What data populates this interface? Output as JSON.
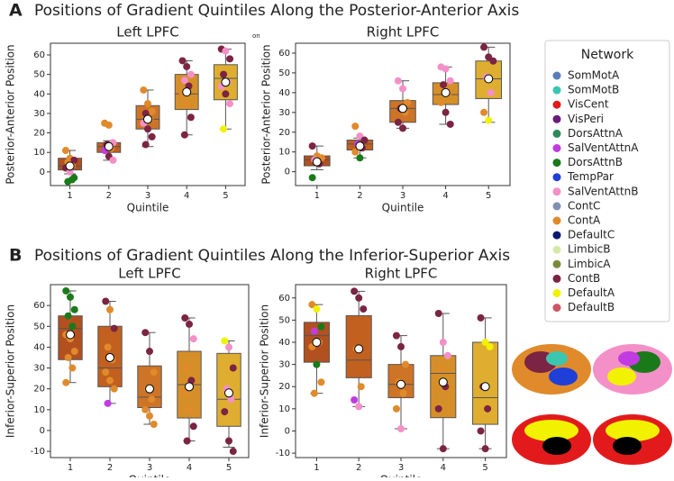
{
  "figure": {
    "panel_a": {
      "letter": "A",
      "title": "Positions of Gradient Quintiles Along the Posterior-Anterior Axis"
    },
    "panel_b": {
      "letter": "B",
      "title": "Positions of Gradient Quintiles Along the Inferior-Superior Axis"
    },
    "stray_text": "on",
    "legend": {
      "title": "Network",
      "entries": [
        {
          "name": "SomMotA",
          "color": "#5b7fb8"
        },
        {
          "name": "SomMotB",
          "color": "#3cc6b0"
        },
        {
          "name": "VisCent",
          "color": "#e31a1c"
        },
        {
          "name": "VisPeri",
          "color": "#6a1b7a"
        },
        {
          "name": "DorsAttnA",
          "color": "#2e8b57"
        },
        {
          "name": "SalVentAttnA",
          "color": "#c13ce0"
        },
        {
          "name": "DorsAttnB",
          "color": "#1a7a1a"
        },
        {
          "name": "TempPar",
          "color": "#1f3fd8"
        },
        {
          "name": "SalVentAttnB",
          "color": "#f490c8"
        },
        {
          "name": "ContC",
          "color": "#7f8fb0"
        },
        {
          "name": "ContA",
          "color": "#e08a2c"
        },
        {
          "name": "DefaultC",
          "color": "#0b1a6e"
        },
        {
          "name": "LimbicB",
          "color": "#d6e8a8"
        },
        {
          "name": "LimbicA",
          "color": "#7a8a3a"
        },
        {
          "name": "ContB",
          "color": "#7b2443"
        },
        {
          "name": "DefaultA",
          "color": "#f2f200"
        },
        {
          "name": "DefaultB",
          "color": "#cc5566"
        }
      ]
    }
  },
  "chart_data": [
    {
      "type": "box",
      "title": "Left LPFC",
      "xlabel": "Quintile",
      "ylabel": "Posterior-Anterior Position",
      "categories": [
        "1",
        "2",
        "3",
        "4",
        "5"
      ],
      "ylim": [
        -7,
        66
      ],
      "yticks": [
        0,
        10,
        20,
        30,
        40,
        50,
        60
      ],
      "boxes": [
        {
          "whislo": -1,
          "q1": 1,
          "med": 3,
          "q3": 7,
          "whishi": 11,
          "mean": 3,
          "color": "#b3501f"
        },
        {
          "whislo": 6,
          "q1": 10,
          "med": 13,
          "q3": 15,
          "whishi": 16,
          "mean": 13,
          "color": "#c2601f"
        },
        {
          "whislo": 13,
          "q1": 22,
          "med": 27,
          "q3": 34,
          "whishi": 42,
          "mean": 27,
          "color": "#cd7426"
        },
        {
          "whislo": 19,
          "q1": 32,
          "med": 40,
          "q3": 50,
          "whishi": 57,
          "mean": 41,
          "color": "#d68f28"
        },
        {
          "whislo": 22,
          "q1": 37,
          "med": 48,
          "q3": 55,
          "whishi": 63,
          "mean": 46,
          "color": "#dfae30"
        }
      ],
      "points": [
        {
          "values": [
            11,
            7,
            6,
            5,
            3,
            2,
            0,
            -3,
            -5,
            -4
          ],
          "colors": [
            "#e08a2c",
            "#e08a2c",
            "#7b2443",
            "#e08a2c",
            "#e08a2c",
            "#7b2443",
            "#f490c8",
            "#1a7a1a",
            "#1a7a1a",
            "#1a7a1a"
          ]
        },
        {
          "values": [
            25,
            24,
            15,
            14,
            12,
            11,
            8,
            6
          ],
          "colors": [
            "#e08a2c",
            "#e08a2c",
            "#f490c8",
            "#7b2443",
            "#e08a2c",
            "#c13ce0",
            "#7b2443",
            "#f490c8"
          ]
        },
        {
          "values": [
            42,
            35,
            31,
            30,
            27,
            25,
            22,
            18,
            14
          ],
          "colors": [
            "#e08a2c",
            "#e08a2c",
            "#e08a2c",
            "#7b2443",
            "#e08a2c",
            "#f490c8",
            "#7b2443",
            "#7b2443",
            "#7b2443"
          ]
        },
        {
          "values": [
            57,
            54,
            50,
            47,
            44,
            40,
            35,
            28,
            19
          ],
          "colors": [
            "#7b2443",
            "#7b2443",
            "#f490c8",
            "#f490c8",
            "#7b2443",
            "#e08a2c",
            "#e08a2c",
            "#7b2443",
            "#7b2443"
          ]
        },
        {
          "values": [
            63,
            62,
            58,
            50,
            46,
            44,
            40,
            35,
            22
          ],
          "colors": [
            "#7b2443",
            "#f490c8",
            "#7b2443",
            "#7b2443",
            "#f490c8",
            "#f490c8",
            "#7b2443",
            "#f490c8",
            "#f2f200"
          ]
        }
      ]
    },
    {
      "type": "box",
      "title": "Right LPFC",
      "xlabel": "Quintile",
      "ylabel": "Posterior-Anterior Position",
      "categories": [
        "1",
        "2",
        "3",
        "4",
        "5"
      ],
      "ylim": [
        -7,
        65
      ],
      "yticks": [
        0,
        10,
        20,
        30,
        40,
        50,
        60
      ],
      "boxes": [
        {
          "whislo": 1,
          "q1": 3,
          "med": 6,
          "q3": 8,
          "whishi": 13,
          "mean": 5,
          "color": "#b3501f"
        },
        {
          "whislo": 7,
          "q1": 11,
          "med": 14,
          "q3": 16,
          "whishi": 17,
          "mean": 13,
          "color": "#c2601f"
        },
        {
          "whislo": 22,
          "q1": 25,
          "med": 32,
          "q3": 36,
          "whishi": 46,
          "mean": 32,
          "color": "#cd7426"
        },
        {
          "whislo": 24,
          "q1": 34,
          "med": 39,
          "q3": 45,
          "whishi": 53,
          "mean": 40,
          "color": "#d68f28"
        },
        {
          "whislo": 25,
          "q1": 37,
          "med": 47,
          "q3": 56,
          "whishi": 63,
          "mean": 47,
          "color": "#dfae30"
        }
      ],
      "points": [
        {
          "values": [
            13,
            8,
            7,
            6,
            4,
            -3
          ],
          "colors": [
            "#7b2443",
            "#e08a2c",
            "#e08a2c",
            "#f490c8",
            "#7b2443",
            "#1a7a1a"
          ]
        },
        {
          "values": [
            23,
            18,
            16,
            14,
            12,
            10,
            7
          ],
          "colors": [
            "#e08a2c",
            "#f490c8",
            "#7b2443",
            "#c13ce0",
            "#7b2443",
            "#e08a2c",
            "#1a7a1a"
          ]
        },
        {
          "values": [
            46,
            42,
            35,
            32,
            30,
            25,
            22
          ],
          "colors": [
            "#f490c8",
            "#f490c8",
            "#e08a2c",
            "#7b2443",
            "#e08a2c",
            "#7b2443",
            "#7b2443"
          ]
        },
        {
          "values": [
            53,
            52,
            46,
            44,
            40,
            35,
            30,
            24
          ],
          "colors": [
            "#f490c8",
            "#f490c8",
            "#f490c8",
            "#7b2443",
            "#e08a2c",
            "#e08a2c",
            "#7b2443",
            "#7b2443"
          ]
        },
        {
          "values": [
            63,
            58,
            56,
            48,
            40,
            30,
            26
          ],
          "colors": [
            "#7b2443",
            "#7b2443",
            "#7b2443",
            "#f490c8",
            "#f490c8",
            "#e08a2c",
            "#f2f200"
          ]
        }
      ]
    },
    {
      "type": "box",
      "title": "Left LPFC",
      "xlabel": "Quintile",
      "ylabel": "Inferior-Superior Position",
      "categories": [
        "1",
        "2",
        "3",
        "4",
        "5"
      ],
      "ylim": [
        -13,
        70
      ],
      "yticks": [
        -10,
        0,
        10,
        20,
        30,
        40,
        50,
        60
      ],
      "boxes": [
        {
          "whislo": 23,
          "q1": 34,
          "med": 49,
          "q3": 55,
          "whishi": 67,
          "mean": 46,
          "color": "#b3501f"
        },
        {
          "whislo": 13,
          "q1": 21,
          "med": 30,
          "q3": 50,
          "whishi": 62,
          "mean": 35,
          "color": "#c2601f"
        },
        {
          "whislo": 3,
          "q1": 11,
          "med": 16,
          "q3": 31,
          "whishi": 47,
          "mean": 20,
          "color": "#cd7426"
        },
        {
          "whislo": -5,
          "q1": 6,
          "med": 22,
          "q3": 38,
          "whishi": 54,
          "mean": 21,
          "color": "#d68f28"
        },
        {
          "whislo": -8,
          "q1": 2,
          "med": 15,
          "q3": 37,
          "whishi": 43,
          "mean": 18,
          "color": "#dfae30"
        }
      ],
      "points": [
        {
          "values": [
            67,
            64,
            58,
            55,
            50,
            46,
            44,
            38,
            35,
            30,
            23
          ],
          "colors": [
            "#1a7a1a",
            "#1a7a1a",
            "#1a7a1a",
            "#1a7a1a",
            "#1a7a1a",
            "#e08a2c",
            "#e08a2c",
            "#e08a2c",
            "#e08a2c",
            "#e08a2c",
            "#e08a2c"
          ]
        },
        {
          "values": [
            62,
            58,
            49,
            40,
            34,
            28,
            24,
            20,
            13
          ],
          "colors": [
            "#7b2443",
            "#e08a2c",
            "#7b2443",
            "#e08a2c",
            "#e08a2c",
            "#e08a2c",
            "#e08a2c",
            "#e08a2c",
            "#c13ce0"
          ]
        },
        {
          "values": [
            47,
            38,
            28,
            20,
            15,
            10,
            7,
            3
          ],
          "colors": [
            "#7b2443",
            "#7b2443",
            "#e08a2c",
            "#e08a2c",
            "#e08a2c",
            "#e08a2c",
            "#e08a2c",
            "#e08a2c"
          ]
        },
        {
          "values": [
            54,
            51,
            44,
            30,
            24,
            18,
            10,
            2,
            -5
          ],
          "colors": [
            "#7b2443",
            "#7b2443",
            "#f490c8",
            "#e08a2c",
            "#7b2443",
            "#e08a2c",
            "#e08a2c",
            "#7b2443",
            "#7b2443"
          ]
        },
        {
          "values": [
            43,
            40,
            30,
            20,
            15,
            9,
            -5,
            -10
          ],
          "colors": [
            "#f2f200",
            "#f490c8",
            "#7b2443",
            "#f490c8",
            "#f490c8",
            "#7b2443",
            "#7b2443",
            "#7b2443"
          ]
        }
      ]
    },
    {
      "type": "box",
      "title": "Right LPFC",
      "xlabel": "Quintile",
      "ylabel": "Inferior-Superior Position",
      "categories": [
        "1",
        "2",
        "3",
        "4",
        "5"
      ],
      "ylim": [
        -12,
        66
      ],
      "yticks": [
        -10,
        0,
        10,
        20,
        30,
        40,
        50,
        60
      ],
      "boxes": [
        {
          "whislo": 17,
          "q1": 31,
          "med": 43,
          "q3": 49,
          "whishi": 57,
          "mean": 40,
          "color": "#b3501f"
        },
        {
          "whislo": 11,
          "q1": 24,
          "med": 32,
          "q3": 52,
          "whishi": 63,
          "mean": 37,
          "color": "#c2601f"
        },
        {
          "whislo": 1,
          "q1": 15,
          "med": 21,
          "q3": 30,
          "whishi": 43,
          "mean": 21,
          "color": "#cd7426"
        },
        {
          "whislo": -8,
          "q1": 6,
          "med": 26,
          "q3": 34,
          "whishi": 53,
          "mean": 22,
          "color": "#d68f28"
        },
        {
          "whislo": -8,
          "q1": 3,
          "med": 15,
          "q3": 40,
          "whishi": 51,
          "mean": 20,
          "color": "#dfae30"
        }
      ],
      "points": [
        {
          "values": [
            57,
            55,
            47,
            45,
            40,
            38,
            30,
            22,
            17
          ],
          "colors": [
            "#e08a2c",
            "#f2f200",
            "#1a7a1a",
            "#c13ce0",
            "#e08a2c",
            "#e08a2c",
            "#1a7a1a",
            "#e08a2c",
            "#e08a2c"
          ]
        },
        {
          "values": [
            63,
            60,
            55,
            37,
            20,
            14,
            11
          ],
          "colors": [
            "#7b2443",
            "#7b2443",
            "#7b2443",
            "#e08a2c",
            "#e08a2c",
            "#c13ce0",
            "#f490c8"
          ]
        },
        {
          "values": [
            43,
            38,
            30,
            22,
            17,
            10,
            1
          ],
          "colors": [
            "#7b2443",
            "#7b2443",
            "#e08a2c",
            "#e08a2c",
            "#e08a2c",
            "#e08a2c",
            "#f490c8"
          ]
        },
        {
          "values": [
            53,
            40,
            34,
            28,
            20,
            10,
            -8
          ],
          "colors": [
            "#7b2443",
            "#f490c8",
            "#f490c8",
            "#e08a2c",
            "#7b2443",
            "#7b2443",
            "#7b2443"
          ]
        },
        {
          "values": [
            51,
            40,
            38,
            20,
            10,
            0,
            -8
          ],
          "colors": [
            "#7b2443",
            "#f2f200",
            "#f2f200",
            "#7b2443",
            "#7b2443",
            "#7b2443",
            "#7b2443"
          ]
        }
      ]
    }
  ]
}
